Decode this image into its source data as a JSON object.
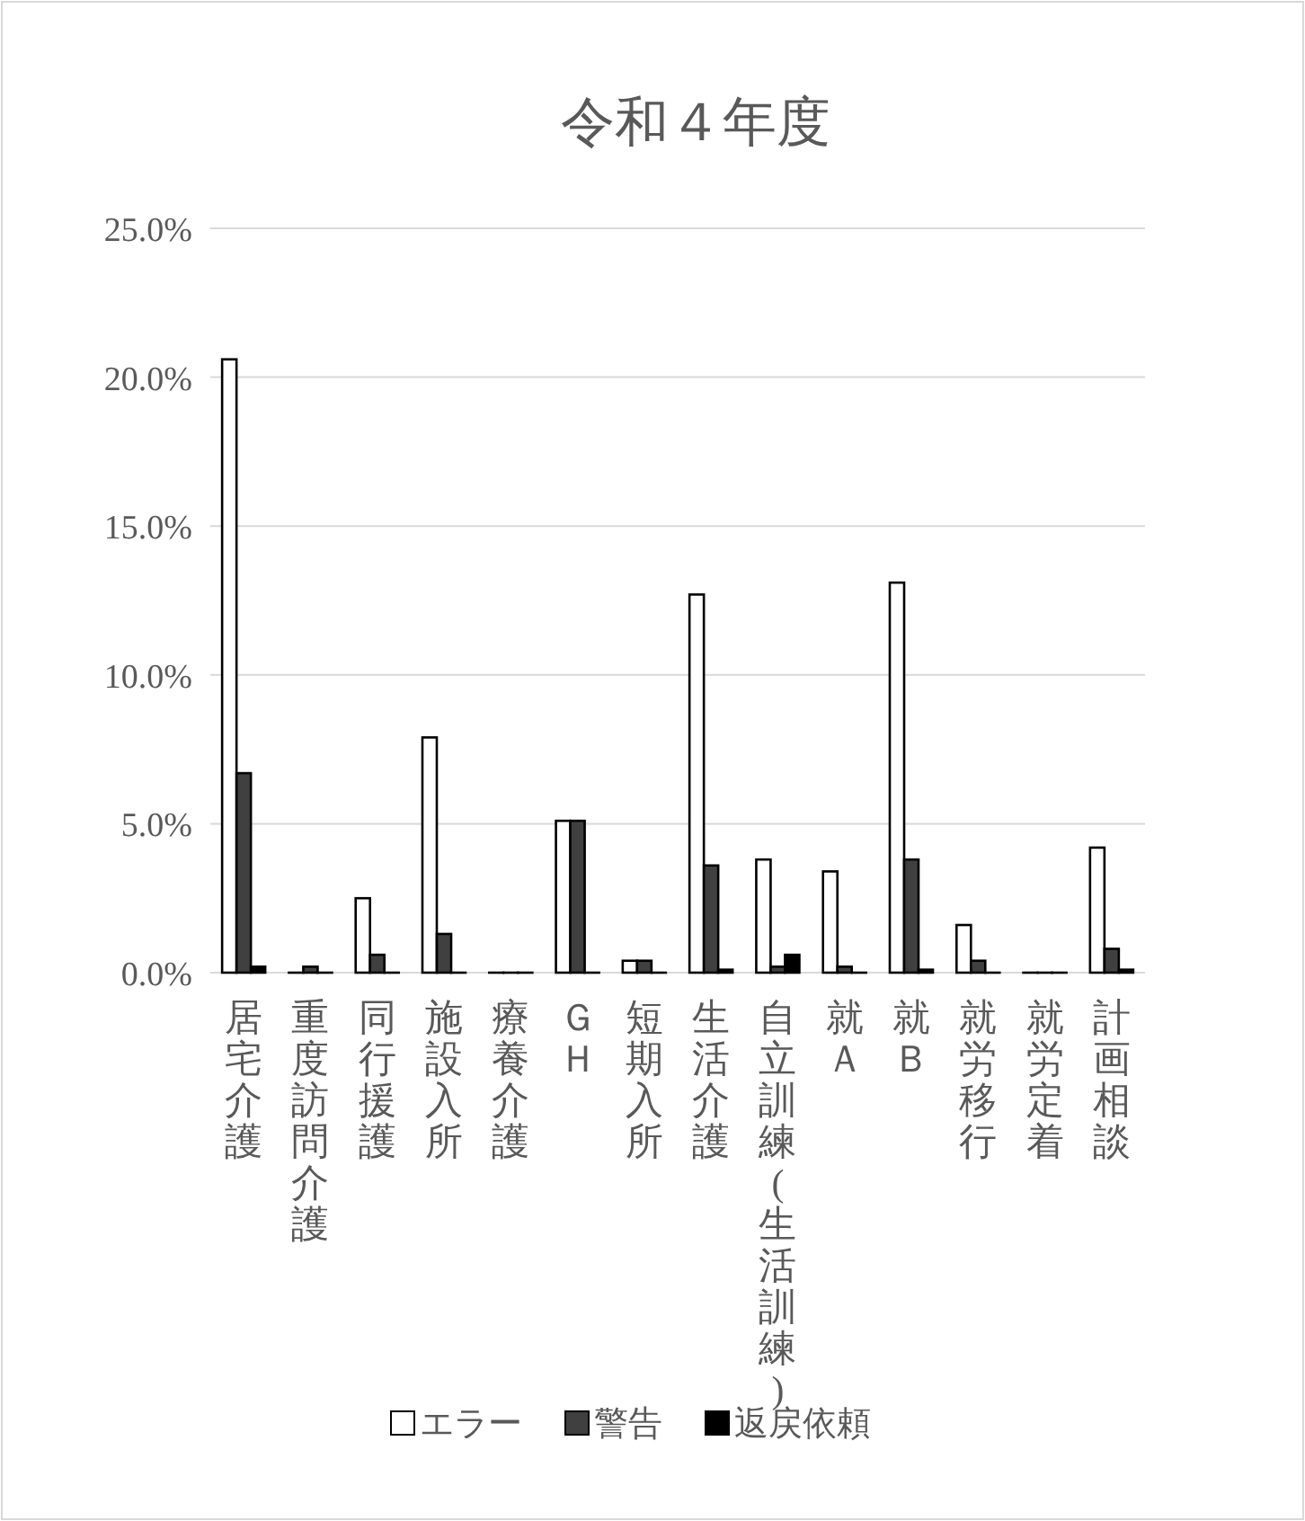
{
  "chart_data": {
    "type": "bar",
    "title": "令和４年度",
    "categories": [
      "居宅介護",
      "重度訪問介護",
      "同行援護",
      "施設入所",
      "療養介護",
      "ＧＨ",
      "短期入所",
      "生活介護",
      "自立訓練(生活訓練)",
      "就Ａ",
      "就Ｂ",
      "就労移行",
      "就労定着",
      "計画相談"
    ],
    "series": [
      {
        "name": "エラー",
        "color": "#ffffff",
        "values": [
          20.6,
          0,
          2.5,
          7.9,
          0,
          5.1,
          0.4,
          12.7,
          3.8,
          3.4,
          13.1,
          1.6,
          0,
          4.2
        ]
      },
      {
        "name": "警告",
        "color": "#404040",
        "values": [
          6.7,
          0.2,
          0.6,
          1.3,
          0,
          5.1,
          0.4,
          3.6,
          0.2,
          0.2,
          3.8,
          0.4,
          0,
          0.8
        ]
      },
      {
        "name": "返戻依頼",
        "color": "#000000",
        "values": [
          0.2,
          0,
          0,
          0,
          0,
          0,
          0,
          0.1,
          0.6,
          0,
          0.1,
          0,
          0,
          0.1
        ]
      }
    ],
    "ylim": [
      0,
      25
    ],
    "yticks": [
      {
        "value": 0,
        "label": "0.0%"
      },
      {
        "value": 5,
        "label": "5.0%"
      },
      {
        "value": 10,
        "label": "10.0%"
      },
      {
        "value": 15,
        "label": "15.0%"
      },
      {
        "value": 20,
        "label": "20.0%"
      },
      {
        "value": 25,
        "label": "25.0%"
      }
    ],
    "grid": "y",
    "legend": "bottom"
  }
}
